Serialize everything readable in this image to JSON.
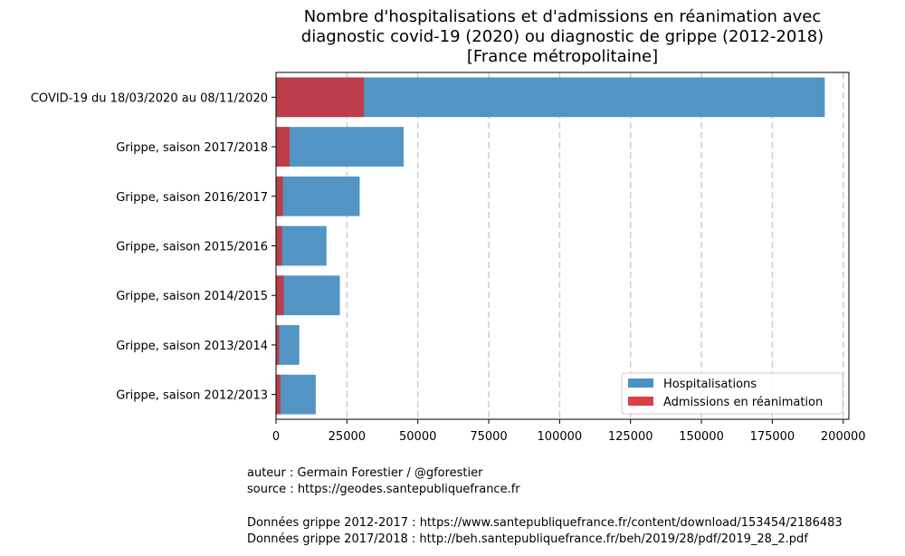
{
  "chart_data": {
    "type": "bar",
    "orientation": "horizontal",
    "stacked": false,
    "title_lines": [
      "Nombre d'hospitalisations et d'admissions en réanimation avec",
      "diagnostic covid-19 (2020) ou diagnostic de grippe (2012-2018)",
      "[France métropolitaine]"
    ],
    "categories": [
      "COVID-19 du 18/03/2020 au 08/11/2020",
      "Grippe, saison 2017/2018",
      "Grippe, saison 2016/2017",
      "Grippe, saison 2015/2016",
      "Grippe, saison 2014/2015",
      "Grippe, saison 2013/2014",
      "Grippe, saison 2012/2013"
    ],
    "series": [
      {
        "name": "Hospitalisations",
        "color": "#4c92c3",
        "values": [
          193500,
          45000,
          29500,
          17800,
          22500,
          8200,
          14000
        ]
      },
      {
        "name": "Admissions en réanimation",
        "color": "#c13b47",
        "values": [
          31000,
          4800,
          2400,
          2100,
          2700,
          1100,
          1600
        ]
      }
    ],
    "xlim": [
      0,
      202000
    ],
    "xticks": [
      0,
      25000,
      50000,
      75000,
      100000,
      125000,
      150000,
      175000,
      200000
    ],
    "grid": "x dashed",
    "legend_position": "bottom-right",
    "legend_colors": [
      "#4c92c3",
      "#d9404a"
    ]
  },
  "notes": {
    "author": "auteur : Germain Forestier / @gforestier",
    "source": "source : https://geodes.santepubliquefrance.fr",
    "data1": "Données grippe 2012-2017 : https://www.santepubliquefrance.fr/content/download/153454/2186483",
    "data2": "Données grippe 2017/2018 : http://beh.santepubliquefrance.fr/beh/2019/28/pdf/2019_28_2.pdf"
  }
}
